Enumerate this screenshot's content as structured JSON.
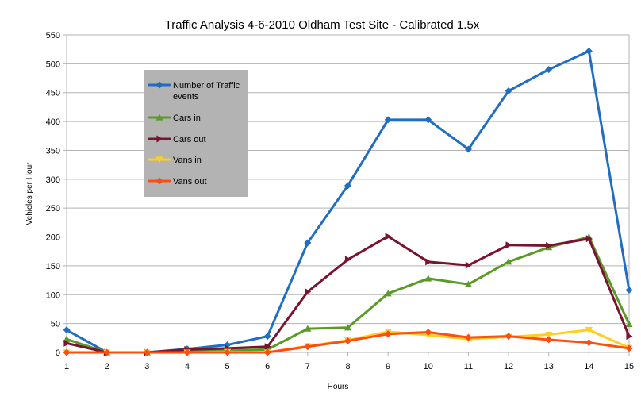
{
  "chart_data": {
    "type": "line",
    "title": "Traffic Analysis 4-6-2010 Oldham Test Site - Calibrated 1.5x",
    "xlabel": "Hours",
    "ylabel": "Vehicles per Hour",
    "x": [
      1,
      2,
      3,
      4,
      5,
      6,
      7,
      8,
      9,
      10,
      11,
      12,
      13,
      14,
      15
    ],
    "xlim": [
      1,
      15
    ],
    "ylim": [
      0,
      550
    ],
    "ytick_step": 50,
    "grid": true,
    "legend_position": "top-left",
    "series": [
      {
        "name": "Number of Traffic events",
        "color": "#1f6ec3",
        "marker": "diamond",
        "values": [
          39,
          0,
          0,
          6,
          13,
          28,
          190,
          289,
          403,
          403,
          352,
          453,
          490,
          522,
          108
        ]
      },
      {
        "name": "Cars in",
        "color": "#5a9a26",
        "marker": "triangle-up",
        "values": [
          23,
          0,
          0,
          3,
          4,
          5,
          41,
          43,
          102,
          128,
          118,
          157,
          182,
          200,
          49
        ]
      },
      {
        "name": "Cars out",
        "color": "#7a1330",
        "marker": "triangle-right",
        "values": [
          16,
          0,
          0,
          5,
          7,
          10,
          105,
          161,
          201,
          157,
          151,
          186,
          185,
          197,
          28
        ]
      },
      {
        "name": "Vans in",
        "color": "#ffce1f",
        "marker": "triangle-down",
        "values": [
          0,
          0,
          0,
          0,
          1,
          0,
          11,
          21,
          36,
          30,
          23,
          27,
          31,
          39,
          8
        ]
      },
      {
        "name": "Vans out",
        "color": "#ff4d0f",
        "marker": "diamond",
        "values": [
          0,
          0,
          0,
          0,
          0,
          0,
          10,
          20,
          32,
          35,
          26,
          28,
          22,
          17,
          7
        ]
      }
    ]
  }
}
